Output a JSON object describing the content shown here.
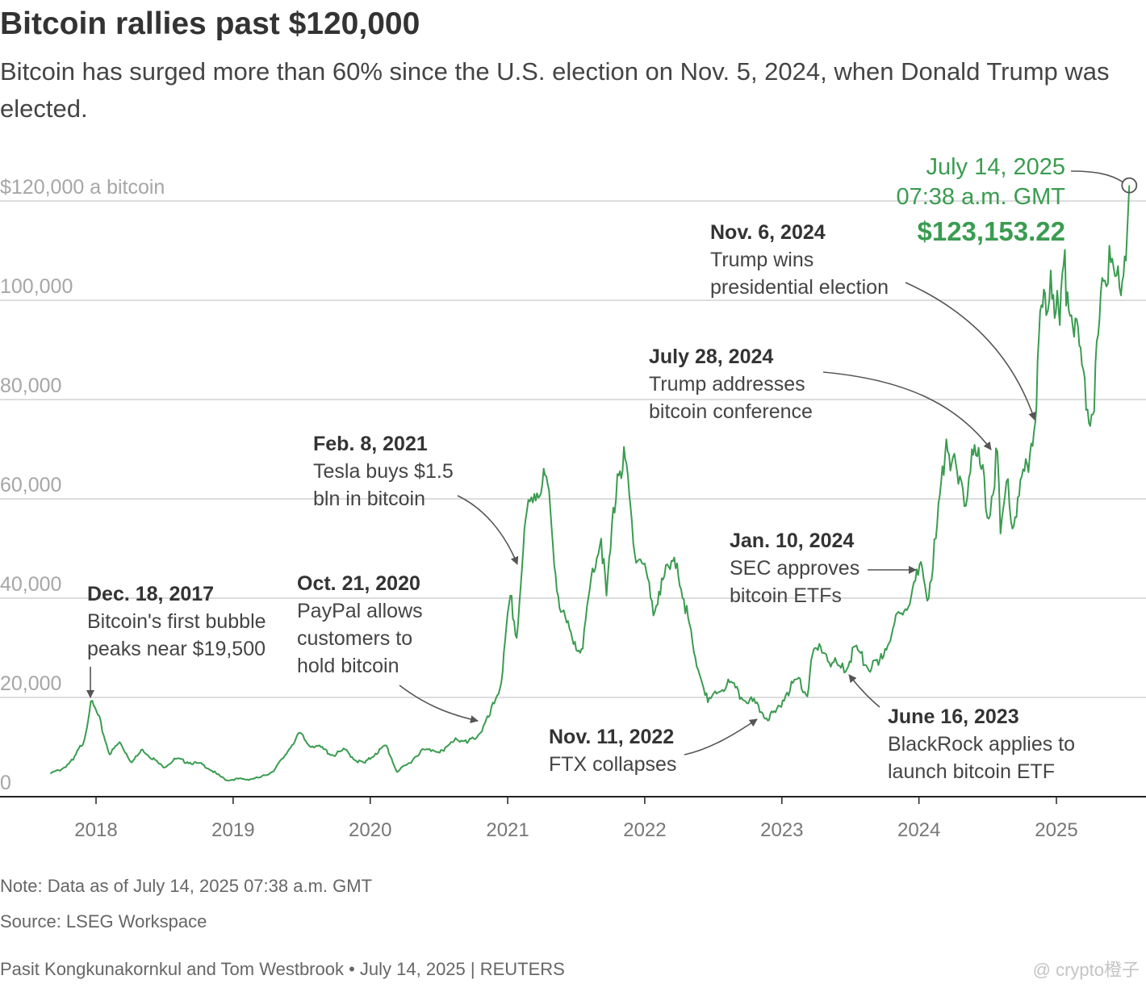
{
  "header": {
    "title": "Bitcoin rallies past $120,000",
    "subtitle": "Bitcoin has surged more than 60% since the U.S. election on Nov. 5, 2024, when Donald Trump was elected."
  },
  "footer": {
    "note": "Note: Data as of July 14, 2025 07:38 a.m. GMT",
    "source": "Source: LSEG Workspace",
    "byline": "Pasit Kongkunakornkul and Tom Westbrook • July 14, 2025 | REUTERS",
    "watermark": "@ crypto橙子"
  },
  "colors": {
    "line": "#3a9c50",
    "highlight": "#3a9c50",
    "annotation": "#555555"
  },
  "chart_data": {
    "type": "line",
    "title": "Bitcoin rallies past $120,000",
    "subtitle": "Bitcoin has surged more than 60% since the U.S. election on Nov. 5, 2024, when Donald Trump was elected.",
    "xlabel": "",
    "ylabel": "$120,000 a bitcoin",
    "ylim": [
      0,
      120000
    ],
    "xlim": [
      "2017-09-01",
      "2025-07-14"
    ],
    "grid": true,
    "y_ticks": [
      {
        "value": 120000,
        "label": "$120,000 a bitcoin"
      },
      {
        "value": 100000,
        "label": "100,000"
      },
      {
        "value": 80000,
        "label": "80,000"
      },
      {
        "value": 60000,
        "label": "60,000"
      },
      {
        "value": 40000,
        "label": "40,000"
      },
      {
        "value": 20000,
        "label": "20,000"
      },
      {
        "value": 0,
        "label": "0"
      }
    ],
    "x_ticks": [
      {
        "date": "2018-01-01",
        "label": "2018"
      },
      {
        "date": "2019-01-01",
        "label": "2019"
      },
      {
        "date": "2020-01-01",
        "label": "2020"
      },
      {
        "date": "2021-01-01",
        "label": "2021"
      },
      {
        "date": "2022-01-01",
        "label": "2022"
      },
      {
        "date": "2023-01-01",
        "label": "2023"
      },
      {
        "date": "2024-01-01",
        "label": "2024"
      },
      {
        "date": "2025-01-01",
        "label": "2025"
      }
    ],
    "series": [
      {
        "x": [
          "2017-09-01",
          "2017-10-01",
          "2017-11-01",
          "2017-12-01",
          "2017-12-18",
          "2018-01-06",
          "2018-02-06",
          "2018-03-05",
          "2018-04-06",
          "2018-05-05",
          "2018-06-29",
          "2018-08-01",
          "2018-09-01",
          "2018-10-15",
          "2018-11-20",
          "2018-12-15",
          "2019-01-15",
          "2019-02-08",
          "2019-03-15",
          "2019-04-15",
          "2019-05-15",
          "2019-06-26",
          "2019-07-20",
          "2019-08-15",
          "2019-09-25",
          "2019-10-26",
          "2019-11-25",
          "2019-12-18",
          "2020-01-15",
          "2020-02-13",
          "2020-03-12",
          "2020-04-15",
          "2020-05-15",
          "2020-06-15",
          "2020-07-15",
          "2020-08-15",
          "2020-09-15",
          "2020-10-21",
          "2020-11-15",
          "2020-12-15",
          "2021-01-08",
          "2021-01-25",
          "2021-02-08",
          "2021-02-21",
          "2021-03-13",
          "2021-04-14",
          "2021-05-19",
          "2021-06-22",
          "2021-07-20",
          "2021-08-15",
          "2021-09-07",
          "2021-09-21",
          "2021-10-20",
          "2021-11-10",
          "2021-12-05",
          "2022-01-01",
          "2022-01-24",
          "2022-02-15",
          "2022-03-28",
          "2022-04-15",
          "2022-05-12",
          "2022-06-18",
          "2022-07-15",
          "2022-08-15",
          "2022-09-15",
          "2022-10-15",
          "2022-11-11",
          "2022-11-21",
          "2022-12-15",
          "2023-01-15",
          "2023-02-15",
          "2023-03-10",
          "2023-03-20",
          "2023-04-14",
          "2023-05-15",
          "2023-06-15",
          "2023-06-16",
          "2023-07-15",
          "2023-08-17",
          "2023-09-15",
          "2023-10-24",
          "2023-11-15",
          "2023-12-15",
          "2024-01-10",
          "2024-01-23",
          "2024-02-15",
          "2024-03-14",
          "2024-04-15",
          "2024-05-01",
          "2024-05-21",
          "2024-06-15",
          "2024-07-05",
          "2024-07-28",
          "2024-08-05",
          "2024-08-25",
          "2024-09-06",
          "2024-10-15",
          "2024-11-06",
          "2024-11-12",
          "2024-11-22",
          "2024-12-05",
          "2024-12-17",
          "2025-01-10",
          "2025-01-20",
          "2025-02-10",
          "2025-03-10",
          "2025-03-25",
          "2025-04-08",
          "2025-04-22",
          "2025-05-10",
          "2025-05-22",
          "2025-06-10",
          "2025-06-22",
          "2025-07-05",
          "2025-07-14"
        ],
        "values": [
          4700,
          5500,
          7400,
          11500,
          19200,
          16500,
          8500,
          11000,
          6900,
          9500,
          5900,
          7600,
          7000,
          6400,
          4500,
          3300,
          3600,
          3450,
          3900,
          5000,
          7800,
          12900,
          10500,
          10200,
          8300,
          9500,
          7200,
          6800,
          8700,
          10300,
          5000,
          6800,
          9300,
          9400,
          9200,
          11800,
          10800,
          12900,
          16500,
          23000,
          40500,
          32000,
          46000,
          57500,
          61000,
          64500,
          38000,
          31800,
          29800,
          46000,
          52000,
          40500,
          65000,
          68000,
          49000,
          47000,
          36500,
          44000,
          47000,
          39800,
          29000,
          19000,
          21000,
          23000,
          20000,
          19200,
          16800,
          15800,
          17000,
          21000,
          24000,
          20200,
          27500,
          30300,
          27000,
          25500,
          25000,
          30300,
          26000,
          26500,
          34000,
          37000,
          42000,
          46000,
          39500,
          52000,
          72000,
          63000,
          58500,
          70000,
          66000,
          56000,
          69500,
          53000,
          64000,
          54000,
          67000,
          75500,
          88000,
          99000,
          97000,
          106000,
          95000,
          107000,
          97000,
          87000,
          78000,
          77000,
          93000,
          104000,
          111000,
          105000,
          101000,
          108000,
          123153.22
        ]
      }
    ],
    "annotations": [
      {
        "date": "Dec. 18, 2017",
        "text": [
          "Bitcoin's first bubble",
          "peaks near $19,500"
        ]
      },
      {
        "date": "Oct. 21, 2020",
        "text": [
          "PayPal allows",
          "customers to",
          "hold bitcoin"
        ]
      },
      {
        "date": "Feb. 8, 2021",
        "text": [
          "Tesla buys $1.5",
          "bln in bitcoin"
        ]
      },
      {
        "date": "Nov. 11, 2022",
        "text": [
          "FTX collapses"
        ]
      },
      {
        "date": "June 16, 2023",
        "text": [
          "BlackRock applies to",
          "launch bitcoin ETF"
        ]
      },
      {
        "date": "Jan. 10, 2024",
        "text": [
          "SEC approves",
          "bitcoin ETFs"
        ]
      },
      {
        "date": "July 28, 2024",
        "text": [
          "Trump addresses",
          "bitcoin conference"
        ]
      },
      {
        "date": "Nov. 6, 2024",
        "text": [
          "Trump wins",
          "presidential election"
        ]
      }
    ],
    "highlight": {
      "date": "July 14, 2025",
      "time": "07:38 a.m. GMT",
      "value": 123153.22,
      "label": "$123,153.22"
    }
  }
}
